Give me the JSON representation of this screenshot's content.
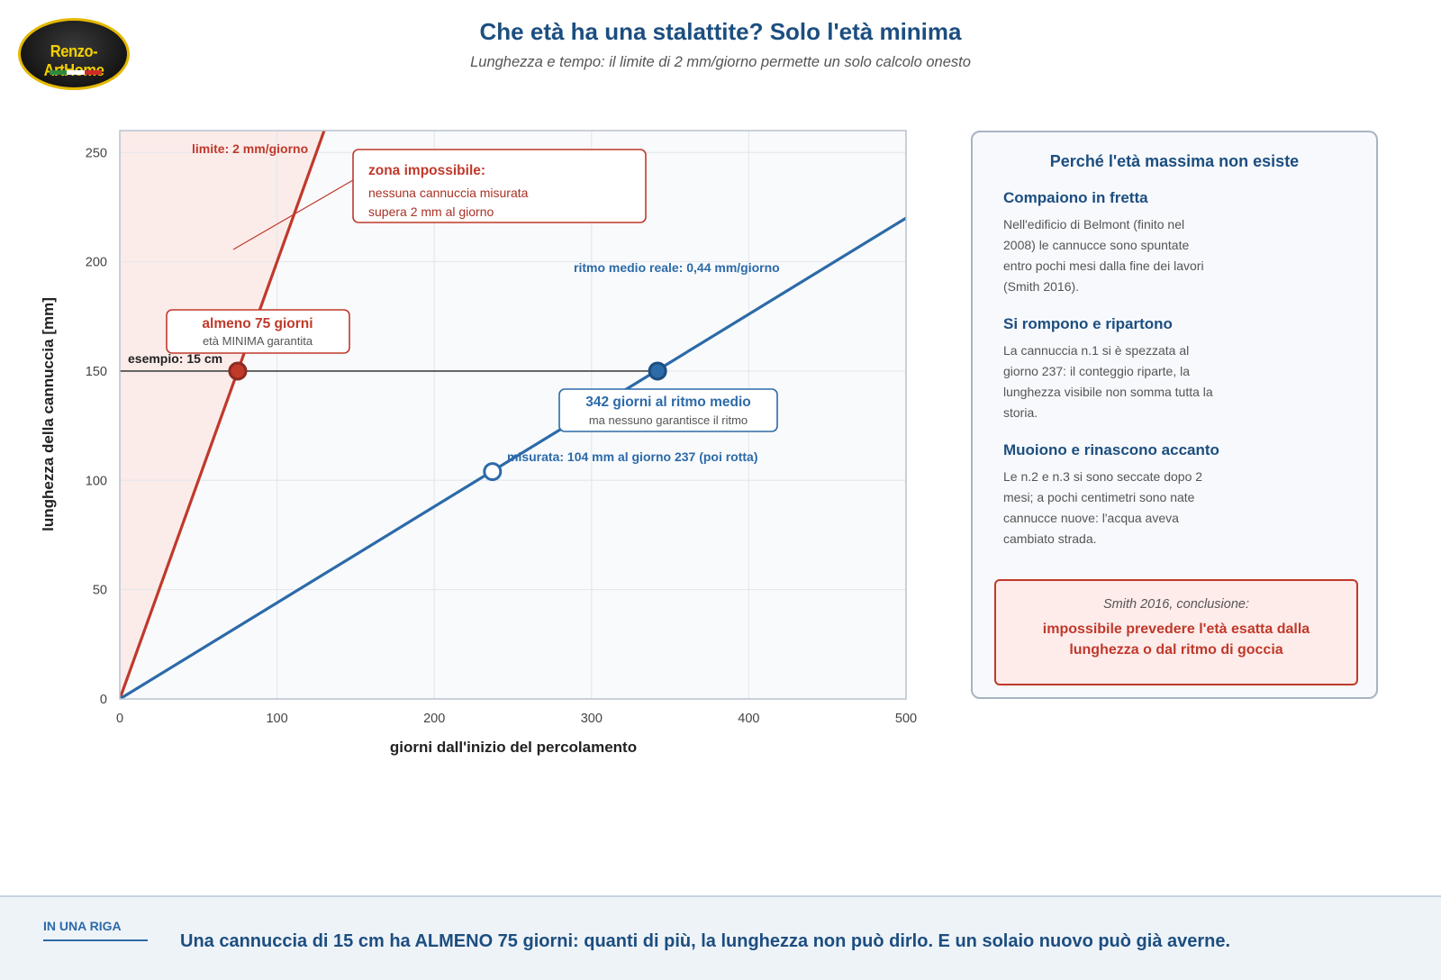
{
  "logo": {
    "text": "Renzo-ArtHome",
    "flag_colors": [
      "#2e8b3a",
      "#ffffff",
      "#d02b27"
    ]
  },
  "header": {
    "title": "Che età ha una stalattite? Solo l'età minima",
    "subtitle": "Lunghezza e tempo: il limite di 2 mm/giorno permette un solo calcolo onesto"
  },
  "colors": {
    "red": "#c0392b",
    "blue": "#2c6aa8",
    "navy": "#1c4e80",
    "zone": "#fbecea",
    "plot_bg": "#f8fafc"
  },
  "chart_data": {
    "type": "line",
    "xlabel": "giorni dall'inizio del percolamento",
    "ylabel": "lunghezza della cannuccia [mm]",
    "xlim": [
      0,
      500
    ],
    "ylim": [
      0,
      260
    ],
    "x_ticks": [
      0,
      100,
      200,
      300,
      400,
      500
    ],
    "y_ticks": [
      0,
      50,
      100,
      150,
      200,
      250
    ],
    "grid": true,
    "series": [
      {
        "label": "limite: 2 mm/giorno",
        "rate_mm_per_day": 2,
        "color": "#c0392b",
        "x": [
          0,
          130
        ],
        "y": [
          0,
          260
        ]
      },
      {
        "label": "ritmo medio reale: 0,44 mm/giorno",
        "rate_mm_per_day": 0.44,
        "color": "#2c6aa8",
        "x": [
          0,
          500
        ],
        "y": [
          0,
          220
        ]
      }
    ],
    "reference_line": {
      "label": "esempio: 15 cm",
      "y": 150
    },
    "points": [
      {
        "x": 75,
        "y": 150,
        "style": "filled",
        "color": "#c0392b"
      },
      {
        "x": 342,
        "y": 150,
        "style": "filled",
        "color": "#2c6aa8"
      },
      {
        "x": 237,
        "y": 104,
        "style": "open",
        "color": "#2c6aa8",
        "label": "misurata: 104 mm al giorno 237 (poi rotta)"
      }
    ],
    "annotations": {
      "zona_title": "zona impossibile:",
      "zona_line1": "nessuna cannuccia misurata",
      "zona_line2": "supera 2 mm al giorno",
      "min_title": "almeno 75 giorni",
      "min_sub": "età MINIMA garantita",
      "avg_title": "342 giorni al ritmo medio",
      "avg_sub": "ma nessuno garantisce il ritmo"
    }
  },
  "side": {
    "title": "Perché l'età massima non esiste",
    "sections": [
      {
        "heading": "Compaiono in fretta",
        "text": "Nell'edificio di Belmont (finito nel 2008) le cannucce sono spuntate entro pochi mesi dalla fine dei lavori (Smith 2016)."
      },
      {
        "heading": "Si rompono e ripartono",
        "text": "La cannuccia n.1 si è spezzata al giorno 237: il conteggio riparte, la lunghezza visibile non somma tutta la storia."
      },
      {
        "heading": "Muoiono e rinascono accanto",
        "text": "Le n.2 e n.3 si sono seccate dopo 2 mesi; a pochi centimetri sono nate cannucce nuove: l'acqua aveva cambiato strada."
      }
    ],
    "conclusion_source": "Smith 2016, conclusione:",
    "conclusion_text": "impossibile prevedere l'età esatta dalla lunghezza o dal ritmo di goccia"
  },
  "footer": {
    "tag": "IN UNA RIGA",
    "text": "Una cannuccia di 15 cm ha ALMENO 75 giorni: quanti di più, la lunghezza non può dirlo. E un solaio nuovo può già averne."
  }
}
